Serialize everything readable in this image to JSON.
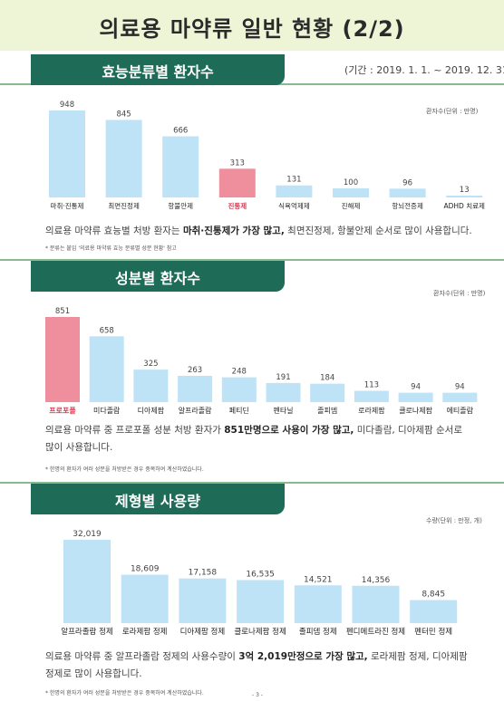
{
  "page": {
    "title": "의료용 마약류 일반 현황 (2/2)",
    "period": "(기간 : 2019. 1. 1. ~ 2019. 12. 31.",
    "page_marker": "- 3 -"
  },
  "colors": {
    "bar": "#bfe3f6",
    "highlight": "#ef8e9c",
    "header": "#1e6b58",
    "highlight_text": "#e0364e"
  },
  "sections": [
    {
      "heading": "효능분류별 환자수",
      "unit": "환자수(단위 : 만명)",
      "desc_pre": "의료용 마약류 효능별 처방 환자는 ",
      "desc_bold": "마취·진통제가 가장 많고,",
      "desc_post": " 최면진정제, 항불안제 순서로 많이 사용합니다.",
      "note": "* 분류는 붙임 '의료용 마약류 효능 분류별 성분 현황' 참고"
    },
    {
      "heading": "성분별 환자수",
      "unit": "환자수(단위 : 만명)",
      "desc_pre": "의료용 마약류 중 프로포폴 성분 처방 환자가 ",
      "desc_bold": "851만명으로 사용이 가장 많고,",
      "desc_post": " 미다졸람, 디아제팜 순서로 많이 사용합니다.",
      "note": "* 한명의 환자가 여러 성분을 처방받은 경우 중복하여 계산하였습니다."
    },
    {
      "heading": "제형별 사용량",
      "unit": "수량(단위 : 만정, 개)",
      "desc_pre": "의료용 마약류 중 알프라졸람 정제의 사용수량이 ",
      "desc_bold": "3억 2,019만정으로 가장 많고,",
      "desc_post": " 로라제팜 정제, 디아제팜 정제로 많이 사용합니다.",
      "note": "* 한명의 환자가 여러 성분을 처방받은 경우 중복하여 계산하였습니다."
    }
  ],
  "chart_data": [
    {
      "type": "bar",
      "categories": [
        "마취·진통제",
        "최면진정제",
        "항불안제",
        "진통제",
        "식욕억제제",
        "진해제",
        "항뇌전증제",
        "ADHD 치료제"
      ],
      "values": [
        948,
        845,
        666,
        313,
        131,
        100,
        96,
        13
      ],
      "value_labels": [
        "948",
        "845",
        "666",
        "313",
        "131",
        "100",
        "96",
        "13"
      ],
      "highlight_index": 3,
      "ylabel": "환자수(단위 : 만명)",
      "ylim": [
        0,
        948
      ]
    },
    {
      "type": "bar",
      "categories": [
        "프로포폴",
        "미다졸람",
        "디아제팜",
        "알프라졸람",
        "페티딘",
        "펜타닐",
        "졸피뎀",
        "로라제팜",
        "클로나제팜",
        "에티졸람"
      ],
      "values": [
        851,
        658,
        325,
        263,
        248,
        191,
        184,
        113,
        94,
        94
      ],
      "value_labels": [
        "851",
        "658",
        "325",
        "263",
        "248",
        "191",
        "184",
        "113",
        "94",
        "94"
      ],
      "highlight_index": 0,
      "ylabel": "환자수(단위 : 만명)",
      "ylim": [
        0,
        851
      ]
    },
    {
      "type": "bar",
      "categories": [
        "알프라졸람 정제",
        "로라제팜 정제",
        "디아제팜 정제",
        "클로나제팜 정제",
        "졸피뎀 정제",
        "펜디메트라진 정제",
        "펜터민 정제"
      ],
      "values": [
        32019,
        18609,
        17158,
        16535,
        14521,
        14356,
        8845
      ],
      "value_labels": [
        "32,019",
        "18,609",
        "17,158",
        "16,535",
        "14,521",
        "14,356",
        "8,845"
      ],
      "highlight_index": -1,
      "ylabel": "수량(단위 : 만정, 개)",
      "ylim": [
        0,
        32019
      ]
    }
  ]
}
